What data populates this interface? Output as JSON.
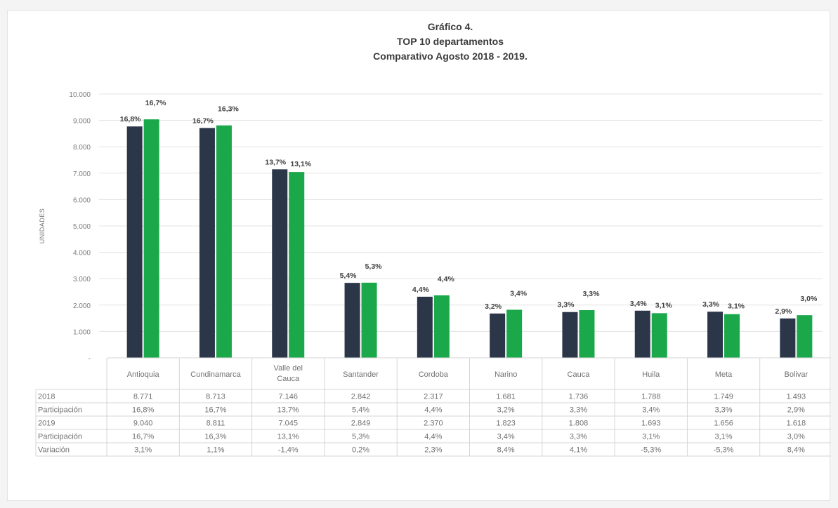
{
  "chart_data": {
    "type": "bar",
    "title": [
      "Gráfico 4.",
      "TOP 10 departamentos",
      "Comparativo Agosto 2018 - 2019."
    ],
    "ylabel": "UNIDADES",
    "ylim": [
      0,
      10000
    ],
    "yticks": [
      "-",
      "1.000",
      "2.000",
      "3.000",
      "4.000",
      "5.000",
      "6.000",
      "7.000",
      "8.000",
      "9.000",
      "10.000"
    ],
    "grid": true,
    "categories": [
      [
        "Antioquia"
      ],
      [
        "Cundinamarca"
      ],
      [
        "Valle del",
        "Cauca"
      ],
      [
        "Santander"
      ],
      [
        "Cordoba"
      ],
      [
        "Narino"
      ],
      [
        "Cauca"
      ],
      [
        "Huila"
      ],
      [
        "Meta"
      ],
      [
        "Bolivar"
      ]
    ],
    "series": [
      {
        "name": "2018",
        "color": "#2b3648",
        "values": [
          8771,
          8713,
          7146,
          2842,
          2317,
          1681,
          1736,
          1788,
          1749,
          1493
        ],
        "labels": [
          "16,8%",
          "16,7%",
          "13,7%",
          "5,4%",
          "4,4%",
          "3,2%",
          "3,3%",
          "3,4%",
          "3,3%",
          "2,9%"
        ]
      },
      {
        "name": "2019",
        "color": "#1aa84a",
        "values": [
          9040,
          8811,
          7045,
          2849,
          2370,
          1823,
          1808,
          1693,
          1656,
          1618
        ],
        "labels": [
          "16,7%",
          "16,3%",
          "13,1%",
          "5,3%",
          "4,4%",
          "3,4%",
          "3,3%",
          "3,1%",
          "3,1%",
          "3,0%"
        ]
      }
    ],
    "table": {
      "rows": [
        {
          "label": "2018",
          "cells": [
            "8.771",
            "8.713",
            "7.146",
            "2.842",
            "2.317",
            "1.681",
            "1.736",
            "1.788",
            "1.749",
            "1.493"
          ]
        },
        {
          "label": "Participación",
          "cells": [
            "16,8%",
            "16,7%",
            "13,7%",
            "5,4%",
            "4,4%",
            "3,2%",
            "3,3%",
            "3,4%",
            "3,3%",
            "2,9%"
          ]
        },
        {
          "label": "2019",
          "cells": [
            "9.040",
            "8.811",
            "7.045",
            "2.849",
            "2.370",
            "1.823",
            "1.808",
            "1.693",
            "1.656",
            "1.618"
          ]
        },
        {
          "label": "Participación",
          "cells": [
            "16,7%",
            "16,3%",
            "13,1%",
            "5,3%",
            "4,4%",
            "3,4%",
            "3,3%",
            "3,1%",
            "3,1%",
            "3,0%"
          ]
        },
        {
          "label": "Variación",
          "cells": [
            "3,1%",
            "1,1%",
            "-1,4%",
            "0,2%",
            "2,3%",
            "8,4%",
            "4,1%",
            "-5,3%",
            "-5,3%",
            "8,4%"
          ]
        }
      ]
    }
  }
}
